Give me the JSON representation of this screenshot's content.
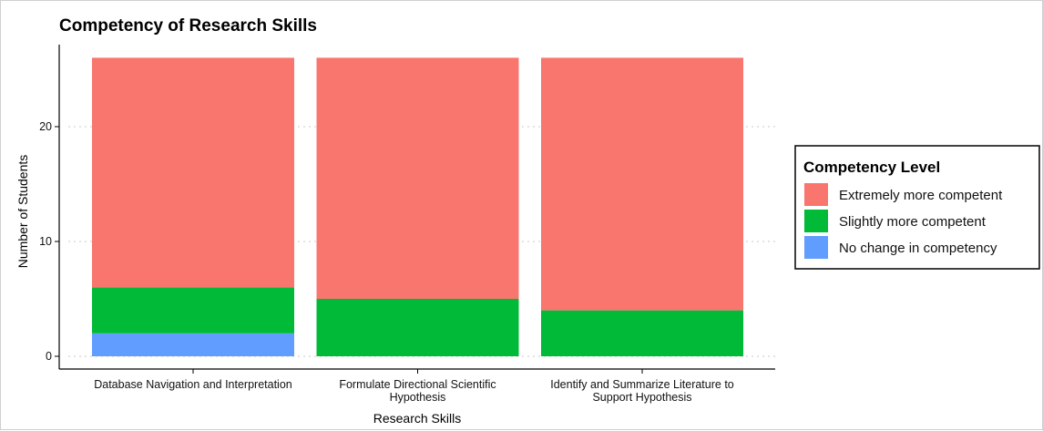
{
  "chart_data": {
    "type": "bar",
    "stacked": true,
    "title": "Competency of Research Skills",
    "xlabel": "Research Skills",
    "ylabel": "Number of Students",
    "ylim": [
      0,
      27
    ],
    "yticks": [
      0,
      10,
      20
    ],
    "grid": "horizontal dotted",
    "categories": [
      [
        "Database Navigation and Interpretation"
      ],
      [
        "Formulate Directional Scientific",
        "Hypothesis"
      ],
      [
        "Identify and Summarize Literature to",
        "Support Hypothesis"
      ]
    ],
    "series": [
      {
        "name": "No change in competency",
        "color": "#619CFF",
        "values": [
          2,
          0,
          0
        ]
      },
      {
        "name": "Slightly more competent",
        "color": "#00BA38",
        "values": [
          4,
          5,
          4
        ]
      },
      {
        "name": "Extremely more competent",
        "color": "#F8766D",
        "values": [
          20,
          21,
          22
        ]
      }
    ],
    "legend": {
      "title": "Competency Level",
      "position": "right",
      "order": [
        "Extremely more competent",
        "Slightly more competent",
        "No change in competency"
      ]
    }
  }
}
